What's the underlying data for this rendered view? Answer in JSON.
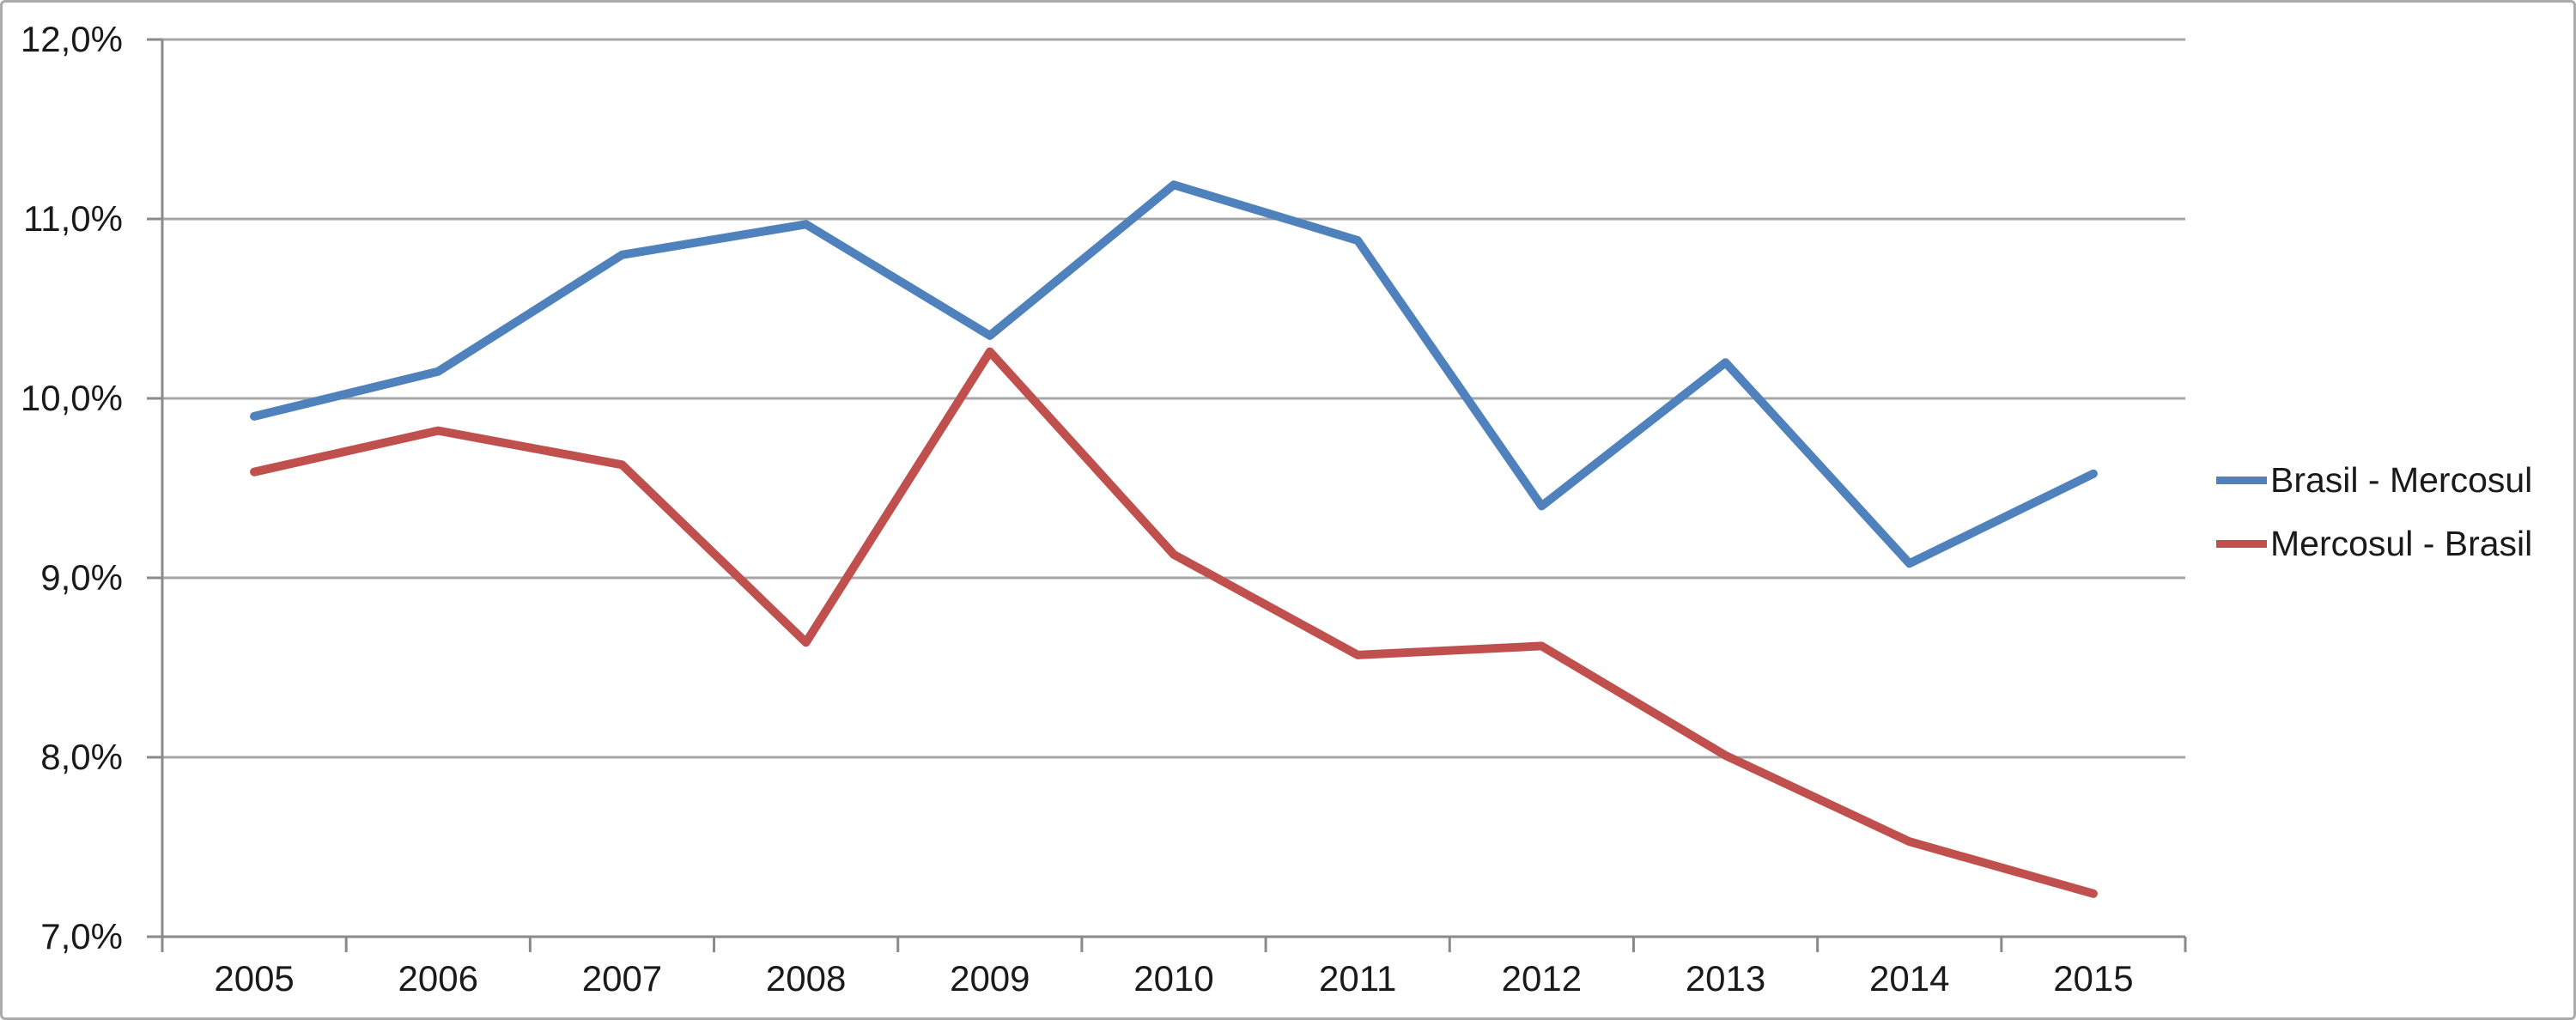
{
  "chart_data": {
    "type": "line",
    "title": "",
    "categories": [
      "2005",
      "2006",
      "2007",
      "2008",
      "2009",
      "2010",
      "2011",
      "2012",
      "2013",
      "2014",
      "2015"
    ],
    "series": [
      {
        "name": "Brasil - Mercosul",
        "color": "#4F81BD",
        "values": [
          9.9,
          10.15,
          10.8,
          10.97,
          10.35,
          11.19,
          10.88,
          9.4,
          10.2,
          9.08,
          9.58
        ]
      },
      {
        "name": "Mercosul - Brasil",
        "color": "#C0504D",
        "values": [
          9.59,
          9.82,
          9.63,
          8.64,
          10.26,
          9.13,
          8.57,
          8.62,
          8.01,
          7.53,
          7.24
        ]
      }
    ],
    "xlabel": "",
    "ylabel": "",
    "ylim": [
      7,
      12
    ],
    "yticks": [
      {
        "value": 12,
        "label": "12,0%"
      },
      {
        "value": 11,
        "label": "11,0%"
      },
      {
        "value": 10,
        "label": "10,0%"
      },
      {
        "value": 9,
        "label": "9,0%"
      },
      {
        "value": 8,
        "label": "8,0%"
      },
      {
        "value": 7,
        "label": "7,0%"
      }
    ],
    "grid": true,
    "legend_position": "right"
  },
  "colors": {
    "gridline": "#A6A6A6",
    "axis": "#8A8A8A",
    "border": "#ABABAB",
    "text": "#1A1A1A",
    "background": "#FFFFFF"
  }
}
